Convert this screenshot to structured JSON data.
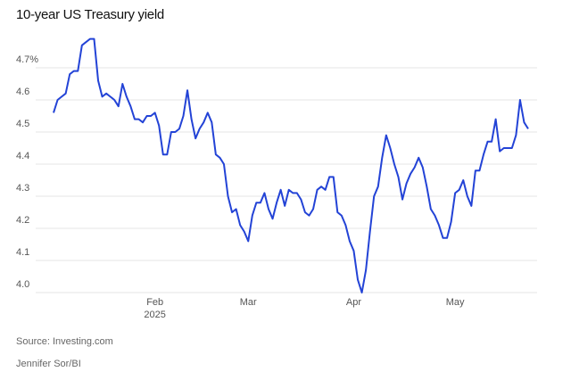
{
  "chart_data": {
    "type": "line",
    "title": "10-year US Treasury yield",
    "source": "Source: Investing.com",
    "credit": "Jennifer Sor/BI",
    "categories": [
      null,
      null,
      null,
      null,
      null,
      null,
      null,
      null,
      null,
      null,
      null,
      null,
      null,
      null,
      null,
      null,
      null,
      null,
      null,
      null,
      null,
      null,
      null,
      null,
      null,
      "Feb\n2025",
      null,
      null,
      null,
      null,
      null,
      null,
      null,
      null,
      null,
      null,
      null,
      null,
      null,
      null,
      null,
      null,
      null,
      null,
      null,
      null,
      null,
      null,
      "Mar",
      null,
      null,
      null,
      null,
      null,
      null,
      null,
      null,
      null,
      null,
      null,
      null,
      null,
      null,
      null,
      null,
      null,
      null,
      null,
      null,
      null,
      null,
      null,
      null,
      null,
      "Apr",
      null,
      null,
      null,
      null,
      null,
      null,
      null,
      null,
      null,
      null,
      null,
      null,
      null,
      null,
      null,
      null,
      null,
      null,
      null,
      null,
      null,
      null,
      null,
      null,
      "May",
      null,
      null,
      null,
      null,
      null,
      null,
      null,
      null,
      null,
      null,
      null,
      null,
      null,
      null,
      null,
      null,
      null,
      null
    ],
    "series": [
      {
        "name": "10-year US Treasury yield",
        "color": "#2343d6",
        "values": [
          4.56,
          4.6,
          4.61,
          4.62,
          4.68,
          4.69,
          4.69,
          4.77,
          4.78,
          4.79,
          4.79,
          4.66,
          4.61,
          4.62,
          4.61,
          4.6,
          4.58,
          4.65,
          4.61,
          4.58,
          4.54,
          4.54,
          4.53,
          4.55,
          4.55,
          4.56,
          4.52,
          4.43,
          4.43,
          4.5,
          4.5,
          4.51,
          4.55,
          4.63,
          4.54,
          4.48,
          4.51,
          4.53,
          4.56,
          4.53,
          4.43,
          4.42,
          4.4,
          4.3,
          4.25,
          4.26,
          4.21,
          4.19,
          4.16,
          4.24,
          4.28,
          4.28,
          4.31,
          4.26,
          4.23,
          4.28,
          4.32,
          4.27,
          4.32,
          4.31,
          4.31,
          4.29,
          4.25,
          4.24,
          4.26,
          4.32,
          4.33,
          4.32,
          4.36,
          4.36,
          4.25,
          4.24,
          4.21,
          4.16,
          4.13,
          4.04,
          4.0,
          4.07,
          4.19,
          4.3,
          4.33,
          4.42,
          4.49,
          4.45,
          4.4,
          4.36,
          4.29,
          4.34,
          4.37,
          4.39,
          4.42,
          4.39,
          4.33,
          4.26,
          4.24,
          4.21,
          4.17,
          4.17,
          4.22,
          4.31,
          4.32,
          4.35,
          4.3,
          4.27,
          4.38,
          4.38,
          4.43,
          4.47,
          4.47,
          4.54,
          4.44,
          4.45,
          4.45,
          4.45,
          4.49,
          4.6,
          4.53,
          4.51
        ]
      }
    ],
    "ylim": [
      4.0,
      4.8
    ],
    "yticks": [
      {
        "value": 4.0,
        "label": "4.0"
      },
      4.1,
      4.2,
      4.3,
      4.4,
      4.5,
      4.6,
      {
        "value": 4.7,
        "label": "4.7%"
      }
    ],
    "grid": true
  }
}
